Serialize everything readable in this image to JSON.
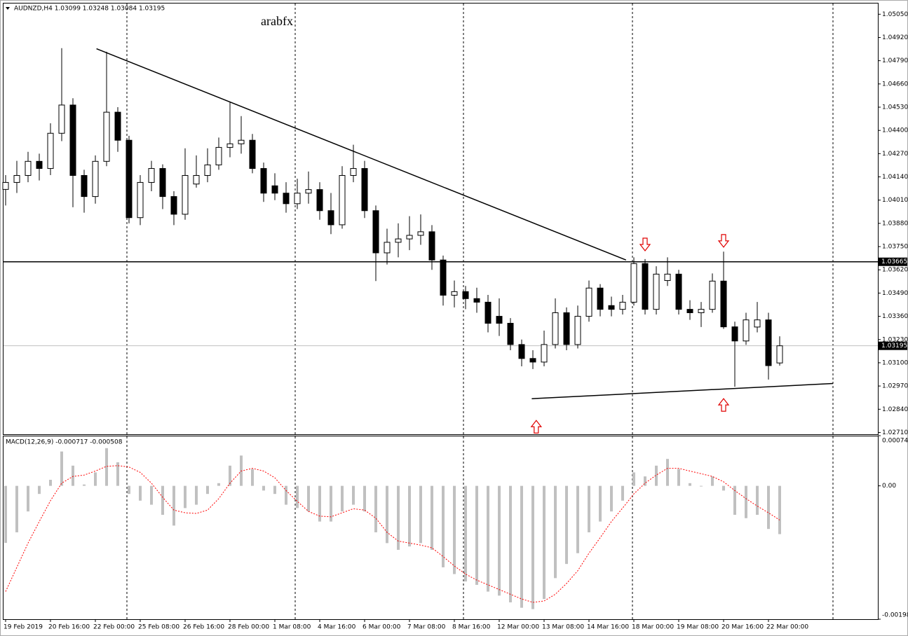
{
  "chart_data": [
    {
      "type": "candlestick",
      "title": "AUDNZD,H4  1.03099 1.03248 1.03084 1.03195",
      "annotation": "arabfx",
      "categories": [
        "19 Feb 2019",
        null,
        null,
        null,
        "20 Feb 16:00",
        null,
        null,
        null,
        "22 Feb 00:00",
        null,
        null,
        null,
        "25 Feb 08:00",
        null,
        null,
        null,
        "26 Feb 16:00",
        null,
        null,
        null,
        "28 Feb 00:00",
        null,
        null,
        null,
        "1 Mar 08:00",
        null,
        null,
        null,
        "4 Mar 16:00",
        null,
        null,
        null,
        "6 Mar 00:00",
        null,
        null,
        null,
        "7 Mar 08:00",
        null,
        null,
        null,
        "8 Mar 16:00",
        null,
        null,
        null,
        "12 Mar 00:00",
        null,
        null,
        null,
        "13 Mar 08:00",
        null,
        null,
        null,
        "14 Mar 16:00",
        null,
        null,
        null,
        "18 Mar 00:00",
        null,
        null,
        null,
        "19 Mar 08:00",
        null,
        null,
        null,
        "20 Mar 16:00",
        null,
        null,
        null,
        "22 Mar 00:00",
        null
      ],
      "open": [
        1.0407,
        1.04109,
        1.04148,
        1.04227,
        1.04187,
        1.04384,
        1.04542,
        1.04148,
        1.0403,
        1.04227,
        1.04502,
        1.04345,
        1.03912,
        1.04109,
        1.04187,
        1.0403,
        1.03931,
        1.041,
        1.04148,
        1.04207,
        1.04305,
        1.04325,
        1.04345,
        1.04187,
        1.0409,
        1.04049,
        1.0399,
        1.04049,
        1.04069,
        1.03951,
        1.03872,
        1.04148,
        1.04187,
        1.03951,
        1.03715,
        1.03774,
        1.03793,
        1.03813,
        1.03833,
        1.03675,
        1.03478,
        1.03498,
        1.03459,
        1.03439,
        1.0336,
        1.03321,
        1.03202,
        1.03124,
        1.03104,
        1.03202,
        1.0338,
        1.03202,
        1.0336,
        1.03518,
        1.0342,
        1.03399,
        1.03439,
        1.03655,
        1.03399,
        1.0356,
        1.03596,
        1.03399,
        1.0338,
        1.03399,
        1.03557,
        1.03301,
        1.03222,
        1.033,
        1.0334,
        1.03099
      ],
      "high": [
        1.0415,
        1.0423,
        1.0428,
        1.0427,
        1.0444,
        1.0486,
        1.0458,
        1.0418,
        1.0426,
        1.0484,
        1.0453,
        1.0437,
        1.0415,
        1.0423,
        1.0421,
        1.0406,
        1.043,
        1.0426,
        1.043,
        1.0436,
        1.0456,
        1.0448,
        1.0438,
        1.0422,
        1.0416,
        1.0411,
        1.0413,
        1.0417,
        1.0411,
        1.0405,
        1.042,
        1.0432,
        1.0423,
        1.0398,
        1.0385,
        1.0388,
        1.0392,
        1.0393,
        1.0387,
        1.037,
        1.0356,
        1.0353,
        1.0352,
        1.0348,
        1.0346,
        1.0335,
        1.0323,
        1.0317,
        1.0328,
        1.0346,
        1.0341,
        1.0342,
        1.0356,
        1.0354,
        1.0347,
        1.0348,
        1.0369,
        1.0368,
        1.0364,
        1.0369,
        1.0362,
        1.0345,
        1.0344,
        1.036,
        1.03722,
        1.0333,
        1.0338,
        1.0344,
        1.0338,
        1.03248
      ],
      "low": [
        1.0398,
        1.0405,
        1.0411,
        1.0412,
        1.0415,
        1.0434,
        1.0397,
        1.0394,
        1.0399,
        1.042,
        1.0428,
        1.0388,
        1.0387,
        1.0406,
        1.0396,
        1.0387,
        1.039,
        1.0408,
        1.0411,
        1.0418,
        1.0425,
        1.0427,
        1.0416,
        1.04,
        1.0401,
        1.0394,
        1.0396,
        1.0399,
        1.039,
        1.0382,
        1.0385,
        1.0411,
        1.0391,
        1.03557,
        1.0365,
        1.0369,
        1.0373,
        1.0376,
        1.0362,
        1.0342,
        1.0341,
        1.034,
        1.0338,
        1.0327,
        1.0325,
        1.0317,
        1.0308,
        1.03065,
        1.0308,
        1.0318,
        1.0317,
        1.0318,
        1.0333,
        1.0336,
        1.0336,
        1.0337,
        1.0342,
        1.0337,
        1.0337,
        1.0353,
        1.0337,
        1.0334,
        1.033,
        1.0338,
        1.0329,
        1.02966,
        1.032,
        1.0327,
        1.03006,
        1.03084
      ],
      "close": [
        1.04109,
        1.04148,
        1.04227,
        1.04187,
        1.04384,
        1.04542,
        1.04148,
        1.0403,
        1.04227,
        1.04502,
        1.04345,
        1.03912,
        1.04109,
        1.04187,
        1.0403,
        1.03931,
        1.04148,
        1.04148,
        1.04207,
        1.04305,
        1.04325,
        1.04345,
        1.04187,
        1.04049,
        1.04049,
        1.0399,
        1.04049,
        1.04069,
        1.03951,
        1.03872,
        1.04148,
        1.04187,
        1.03951,
        1.03715,
        1.03774,
        1.03793,
        1.03813,
        1.03833,
        1.03675,
        1.03478,
        1.03498,
        1.03459,
        1.03439,
        1.03321,
        1.03321,
        1.03202,
        1.03124,
        1.03104,
        1.03202,
        1.0338,
        1.03202,
        1.0336,
        1.03518,
        1.03399,
        1.03399,
        1.03439,
        1.03655,
        1.03399,
        1.03596,
        1.03596,
        1.03399,
        1.0338,
        1.03399,
        1.03557,
        1.03301,
        1.03222,
        1.0334,
        1.0334,
        1.03084,
        1.03195
      ],
      "up_color": "#ffffff",
      "down_color": "#000000",
      "ylim": [
        1.027,
        1.0511
      ],
      "yticks": [
        {
          "value": 1.0505,
          "label": "1.05050"
        },
        {
          "value": 1.0492,
          "label": "1.04920"
        },
        {
          "value": 1.0479,
          "label": "1.04790"
        },
        {
          "value": 1.0466,
          "label": "1.04660"
        },
        {
          "value": 1.0453,
          "label": "1.04530"
        },
        {
          "value": 1.044,
          "label": "1.04400"
        },
        {
          "value": 1.0427,
          "label": "1.04270"
        },
        {
          "value": 1.0414,
          "label": "1.04140"
        },
        {
          "value": 1.0401,
          "label": "1.04010"
        },
        {
          "value": 1.0388,
          "label": "1.03880"
        },
        {
          "value": 1.0375,
          "label": "1.03750"
        },
        {
          "value": 1.0362,
          "label": "1.03620"
        },
        {
          "value": 1.0349,
          "label": "1.03490"
        },
        {
          "value": 1.0336,
          "label": "1.03360"
        },
        {
          "value": 1.0323,
          "label": "1.03230"
        },
        {
          "value": 1.031,
          "label": "1.03100"
        },
        {
          "value": 1.0297,
          "label": "1.02970"
        },
        {
          "value": 1.0284,
          "label": "1.02840"
        },
        {
          "value": 1.0271,
          "label": "1.02710"
        }
      ],
      "horizontal_line": {
        "value": 1.03665,
        "label": "1.03665"
      },
      "current_price": {
        "value": 1.03195,
        "label": "1.03195"
      },
      "trendlines": [
        {
          "bars": [
            8.1,
            55.3
          ],
          "prices": [
            1.04857,
            1.03675
          ]
        },
        {
          "bars": [
            46.9,
            73.75
          ],
          "prices": [
            1.02899,
            1.02984
          ]
        }
      ],
      "arrows": [
        {
          "direction": "down",
          "bar": 57,
          "price": 1.03762
        },
        {
          "direction": "down",
          "bar": 64,
          "price": 1.03782
        },
        {
          "direction": "up",
          "bar": 47.3,
          "price": 1.02742
        },
        {
          "direction": "up",
          "bar": 64,
          "price": 1.02864
        }
      ]
    },
    {
      "type": "macd",
      "title": "MACD(12,26,9) -0.000717 -0.000508",
      "histogram": {
        "color": "#c0c0c0",
        "values": [
          -0.000847,
          -0.00069,
          -0.00038,
          -0.00012,
          9e-05,
          0.00051,
          0.0003,
          2e-05,
          0.0002,
          0.00056,
          0.00035,
          -0.00012,
          -0.00022,
          -0.00028,
          -0.00043,
          -0.00059,
          -0.00033,
          -0.00028,
          -0.00012,
          4e-05,
          0.0003,
          0.00045,
          0.00025,
          -7e-05,
          -0.00012,
          -0.00028,
          -0.00033,
          -0.00038,
          -0.00053,
          -0.00053,
          -0.00038,
          -0.00028,
          -0.00038,
          -0.00069,
          -0.00085,
          -0.00095,
          -0.0009,
          -0.00085,
          -0.00095,
          -0.00121,
          -0.00131,
          -0.00142,
          -0.00147,
          -0.00157,
          -0.00163,
          -0.00173,
          -0.00181,
          -0.00183,
          -0.00168,
          -0.00137,
          -0.00116,
          -0.001,
          -0.00069,
          -0.00053,
          -0.00038,
          -0.00022,
          0.0002,
          0.00014,
          0.0003,
          0.0004,
          0.00025,
          4e-05,
          -1e-05,
          0.00014,
          -7e-05,
          -0.00043,
          -0.00048,
          -0.00043,
          -0.00064,
          -0.000717
        ]
      },
      "signal": {
        "color": "#ff0000",
        "values": [
          -0.00157,
          -0.00121,
          -0.00085,
          -0.00053,
          -0.00022,
          4e-05,
          0.00014,
          0.00016,
          0.00022,
          0.00029,
          0.0003,
          0.00028,
          0.0002,
          4e-05,
          -0.00017,
          -0.00036,
          -0.0004,
          -0.00041,
          -0.00036,
          -0.00019,
          4e-05,
          0.00022,
          0.00026,
          0.00022,
          0.00012,
          -7e-05,
          -0.00023,
          -0.00038,
          -0.00045,
          -0.00046,
          -0.0004,
          -0.00034,
          -0.00036,
          -0.00048,
          -0.00069,
          -0.00082,
          -0.00085,
          -0.00088,
          -0.00092,
          -0.00105,
          -0.00119,
          -0.00131,
          -0.0014,
          -0.00147,
          -0.00154,
          -0.00161,
          -0.00168,
          -0.00173,
          -0.00171,
          -0.00161,
          -0.00145,
          -0.00126,
          -0.001,
          -0.00077,
          -0.00053,
          -0.00033,
          -0.00012,
          4e-05,
          0.00016,
          0.00026,
          0.00026,
          0.00022,
          0.00018,
          0.00014,
          6e-05,
          -7e-05,
          -0.00019,
          -0.0003,
          -0.0004,
          -0.000508
        ]
      },
      "ylim": [
        -0.00198,
        0.000745
      ],
      "yticks": [
        {
          "value": 0.000745,
          "label": "0.000745"
        },
        {
          "value": 0,
          "label": "0.00"
        },
        {
          "value": -0.00198,
          "label": "-0.001980"
        }
      ]
    }
  ]
}
